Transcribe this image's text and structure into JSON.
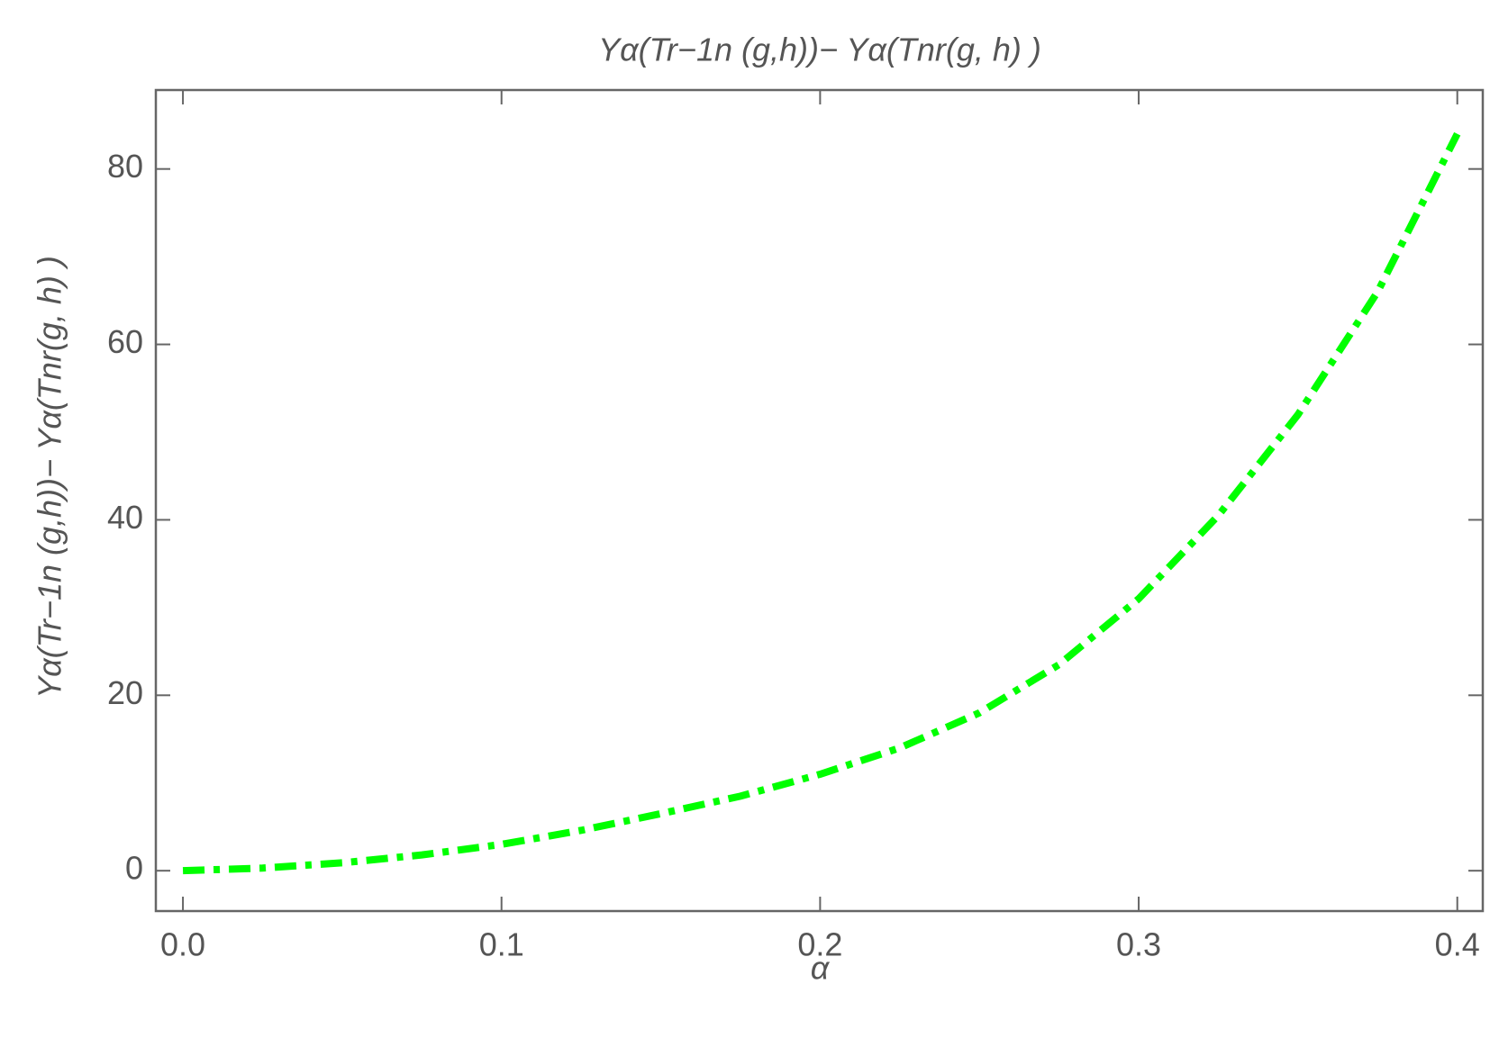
{
  "chart_data": {
    "type": "line",
    "title": "Yα(Tr−1n (g,h))− Yα(Tnr(g, h) )",
    "x_label": "α",
    "y_label": "Yα(Tr−1n (g,h))− Yα(Tnr(g, h) )",
    "x": [
      0,
      0.025,
      0.05,
      0.075,
      0.1,
      0.125,
      0.15,
      0.175,
      0.2,
      0.225,
      0.25,
      0.275,
      0.3,
      0.325,
      0.35,
      0.375,
      0.4
    ],
    "series": [
      {
        "color": "#00ff00",
        "values": [
          0,
          0.3,
          0.9,
          1.8,
          3.0,
          4.6,
          6.5,
          8.5,
          11,
          14,
          18,
          23.5,
          31,
          40.5,
          52,
          66,
          84
        ]
      }
    ],
    "xlim": [
      -0.0085,
      0.408
    ],
    "ylim": [
      -4.6,
      89
    ],
    "xticks": [
      {
        "value": 0,
        "label": "0.0"
      },
      0.1,
      0.2,
      0.3,
      0.4
    ],
    "yticks": [
      0,
      20,
      40,
      60,
      80
    ]
  }
}
